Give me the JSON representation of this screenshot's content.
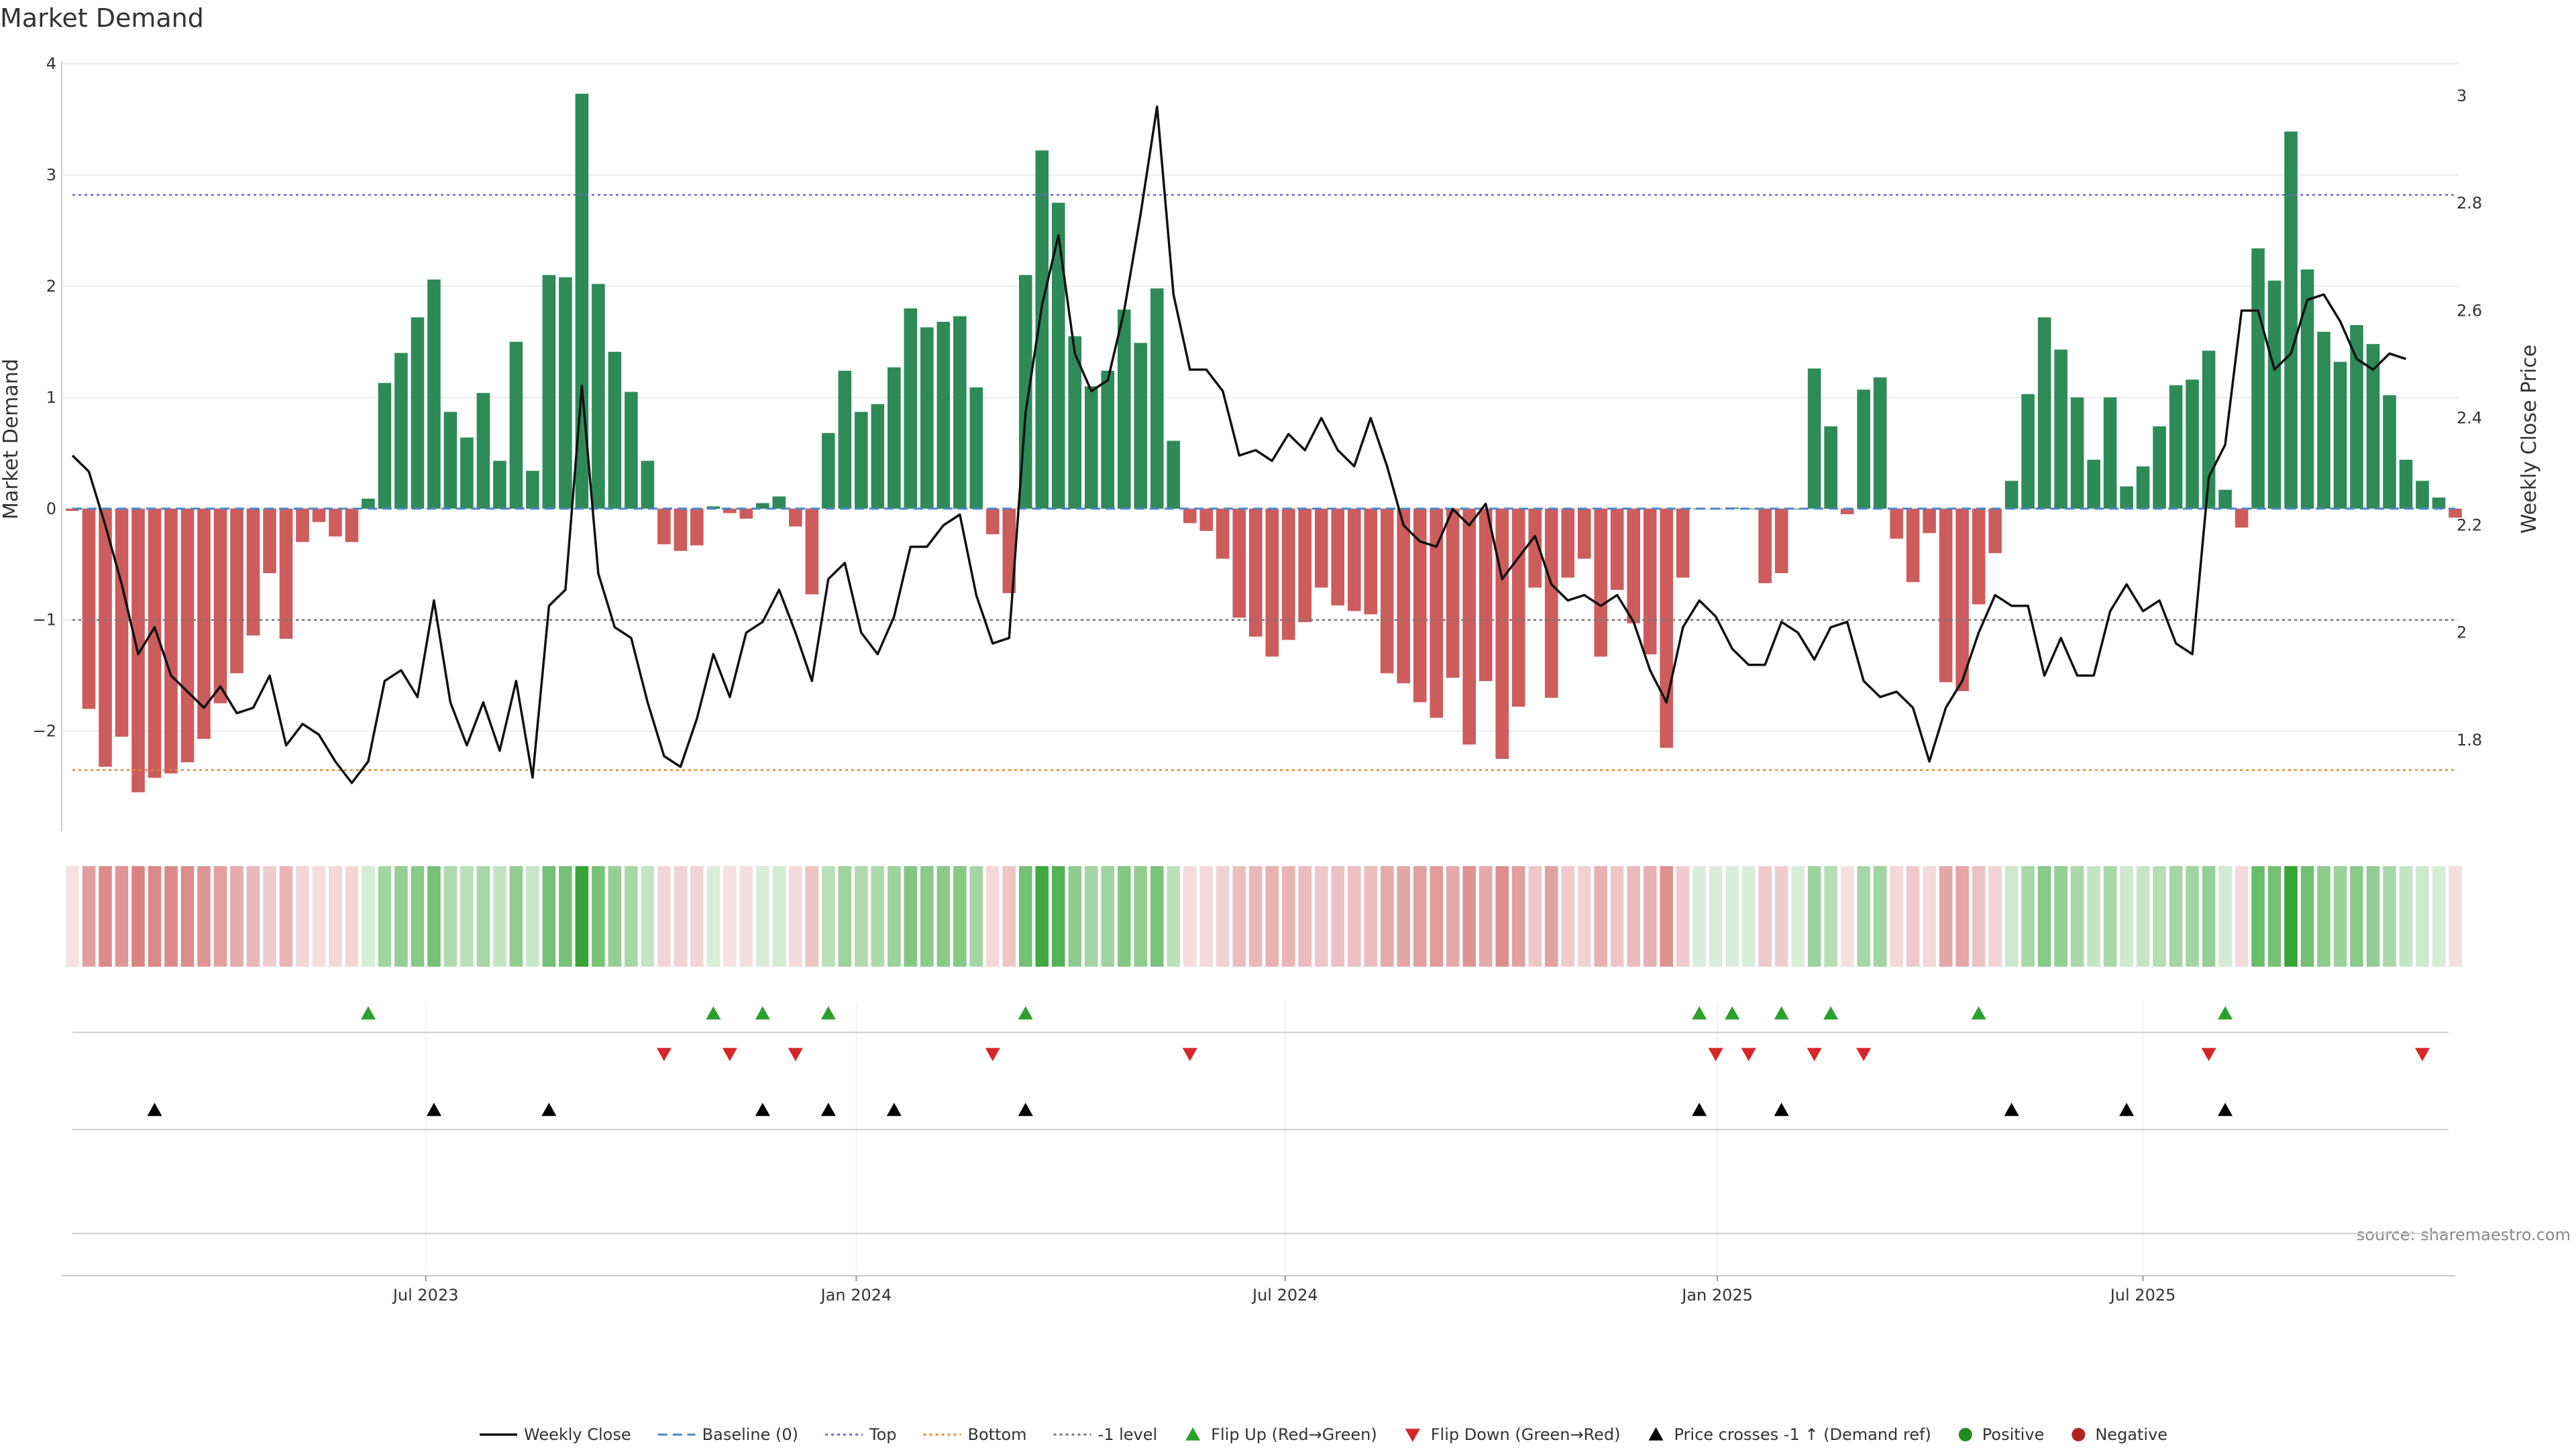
{
  "chart_data": {
    "type": "bar",
    "title": "Market Demand",
    "ylabel_left": "Market Demand",
    "ylabel_right": "Weekly Close Price",
    "source": "source: sharemaestro.com",
    "ylim_left": [
      -2.9,
      4.0
    ],
    "ylim_right": [
      1.63,
      3.06
    ],
    "yticks_left": [
      {
        "v": 4,
        "label": "4"
      },
      {
        "v": 3,
        "label": "3"
      },
      {
        "v": 2,
        "label": "2"
      },
      {
        "v": 1,
        "label": "1"
      },
      {
        "v": 0,
        "label": "0"
      },
      {
        "v": -1,
        "label": "−1"
      },
      {
        "v": -2,
        "label": "−2"
      }
    ],
    "yticks_right": [
      {
        "v": 3.0,
        "label": "3"
      },
      {
        "v": 2.8,
        "label": "2.8"
      },
      {
        "v": 2.6,
        "label": "2.6"
      },
      {
        "v": 2.4,
        "label": "2.4"
      },
      {
        "v": 2.2,
        "label": "2.2"
      },
      {
        "v": 2.0,
        "label": "2"
      },
      {
        "v": 1.8,
        "label": "1.8"
      }
    ],
    "x_ticks": [
      {
        "index": 21.5,
        "label": "Jul 2023"
      },
      {
        "index": 47.7,
        "label": "Jan 2024"
      },
      {
        "index": 73.8,
        "label": "Jul 2024"
      },
      {
        "index": 100.1,
        "label": "Jan 2025"
      },
      {
        "index": 126.0,
        "label": "Jul 2025"
      }
    ],
    "reference_lines": {
      "baseline": 0,
      "top": 2.82,
      "bottom": -2.35,
      "minus_one": -1
    },
    "demand": [
      -0.02,
      -1.8,
      -2.32,
      -2.05,
      -2.55,
      -2.42,
      -2.38,
      -2.28,
      -2.07,
      -1.75,
      -1.48,
      -1.14,
      -0.58,
      -1.17,
      -0.3,
      -0.12,
      -0.25,
      -0.3,
      0.09,
      1.13,
      1.4,
      1.72,
      2.06,
      0.87,
      0.64,
      1.04,
      0.43,
      1.5,
      0.34,
      2.1,
      2.08,
      3.73,
      2.02,
      1.41,
      1.05,
      0.43,
      -0.32,
      -0.38,
      -0.33,
      0.02,
      -0.04,
      -0.09,
      0.05,
      0.11,
      -0.16,
      -0.77,
      0.68,
      1.24,
      0.87,
      0.94,
      1.27,
      1.8,
      1.63,
      1.68,
      1.73,
      1.09,
      -0.23,
      -0.76,
      2.1,
      3.22,
      2.75,
      1.55,
      1.1,
      1.24,
      1.79,
      1.49,
      1.98,
      0.61,
      -0.13,
      -0.2,
      -0.45,
      -0.98,
      -1.15,
      -1.33,
      -1.18,
      -1.02,
      -0.71,
      -0.87,
      -0.92,
      -0.95,
      -1.48,
      -1.57,
      -1.74,
      -1.88,
      -1.52,
      -2.12,
      -1.55,
      -2.25,
      -1.78,
      -0.71,
      -1.7,
      -0.62,
      -0.45,
      -1.33,
      -0.73,
      -1.03,
      -1.31,
      -2.15,
      -0.62,
      0.0,
      0.0,
      0.01,
      0.0,
      -0.67,
      -0.58,
      -0.0,
      1.26,
      0.74,
      -0.05,
      1.07,
      1.18,
      -0.27,
      -0.66,
      -0.22,
      -1.56,
      -1.64,
      -0.86,
      -0.4,
      0.25,
      1.03,
      1.72,
      1.43,
      1.0,
      0.44,
      1.0,
      0.2,
      0.38,
      0.74,
      1.11,
      1.16,
      1.42,
      0.17,
      -0.17,
      2.34,
      2.05,
      3.39,
      2.15,
      1.59,
      1.32,
      1.65,
      1.48,
      1.02,
      0.44,
      0.25,
      0.1,
      -0.08
    ],
    "weekly_close": [
      2.33,
      2.3,
      2.2,
      2.09,
      1.96,
      2.01,
      1.92,
      1.89,
      1.86,
      1.9,
      1.85,
      1.86,
      1.92,
      1.79,
      1.83,
      1.81,
      1.76,
      1.72,
      1.76,
      1.91,
      1.93,
      1.88,
      2.06,
      1.87,
      1.79,
      1.87,
      1.78,
      1.91,
      1.73,
      2.05,
      2.08,
      2.46,
      2.11,
      2.01,
      1.99,
      1.87,
      1.77,
      1.75,
      1.84,
      1.96,
      1.88,
      2.0,
      2.02,
      2.08,
      2.0,
      1.91,
      2.1,
      2.13,
      2.0,
      1.96,
      2.03,
      2.16,
      2.16,
      2.2,
      2.22,
      2.07,
      1.98,
      1.99,
      2.41,
      2.61,
      2.74,
      2.52,
      2.45,
      2.47,
      2.6,
      2.78,
      2.98,
      2.63,
      2.49,
      2.49,
      2.45,
      2.33,
      2.34,
      2.32,
      2.37,
      2.34,
      2.4,
      2.34,
      2.31,
      2.4,
      2.31,
      2.2,
      2.17,
      2.16,
      2.23,
      2.2,
      2.24,
      2.1,
      2.14,
      2.18,
      2.09,
      2.06,
      2.07,
      2.05,
      2.07,
      2.02,
      1.93,
      1.87,
      2.01,
      2.06,
      2.03,
      1.97,
      1.94,
      1.94,
      2.02,
      2.0,
      1.95,
      2.01,
      2.02,
      1.91,
      1.88,
      1.89,
      1.86,
      1.76,
      1.86,
      1.91,
      2.0,
      2.07,
      2.05,
      2.05,
      1.92,
      1.99,
      1.92,
      1.92,
      2.04,
      2.09,
      2.04,
      2.06,
      1.98,
      1.96,
      2.29,
      2.35,
      2.6,
      2.6,
      2.49,
      2.52,
      2.62,
      2.63,
      2.58,
      2.51,
      2.49,
      2.52,
      2.51
    ],
    "flip_up_indices": [
      18,
      39,
      42,
      46,
      58,
      99,
      101,
      104,
      107,
      116,
      131
    ],
    "flip_down_indices": [
      36,
      40,
      44,
      56,
      68,
      100,
      102,
      106,
      109,
      130,
      143
    ],
    "price_cross_indices": [
      5,
      22,
      29,
      42,
      46,
      50,
      58,
      99,
      104,
      118,
      125,
      131
    ],
    "legend": [
      "Weekly Close",
      "Baseline (0)",
      "Top",
      "Bottom",
      "-1 level",
      "Flip Up (Red→Green)",
      "Flip Down (Green→Red)",
      "Price crosses -1 ↑ (Demand ref)",
      "Positive",
      "Negative"
    ],
    "colors": {
      "positive": "#2e8b57",
      "negative": "#cd5c5c",
      "line": "#111111",
      "baseline": "#4a86c5",
      "top": "#6a6acd",
      "bottom": "#e08a2c",
      "minus_one": "#777777",
      "flip_up": "#2ca02c",
      "flip_down": "#d62728",
      "cross": "#000000",
      "positive_dot": "#228b22",
      "negative_dot": "#b22222",
      "grid": "#e6e6e6"
    }
  }
}
